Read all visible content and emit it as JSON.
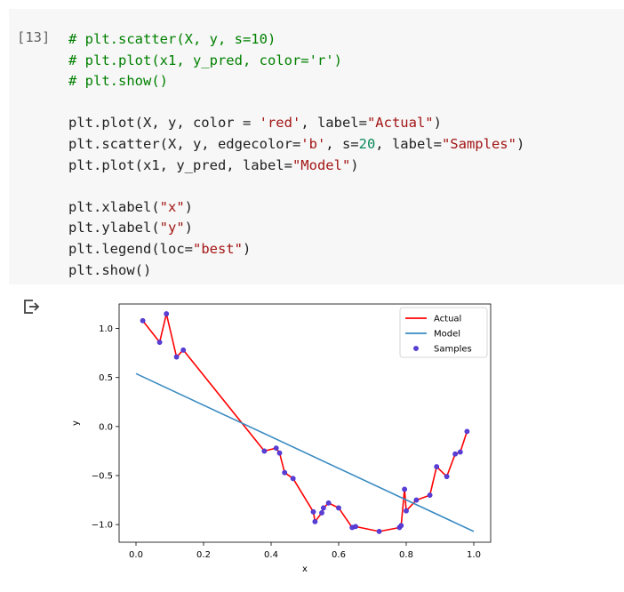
{
  "cell": {
    "execution_count": "[13]",
    "code_lines": [
      [
        {
          "t": "# plt.scatter(X, y, s=10)",
          "c": "cm"
        }
      ],
      [
        {
          "t": "# plt.plot(x1, y_pred, color='r')",
          "c": "cm"
        }
      ],
      [
        {
          "t": "# plt.show()",
          "c": "cm"
        }
      ],
      [],
      [
        {
          "t": "plt.plot(X, y, color = "
        },
        {
          "t": "'red'",
          "c": "st"
        },
        {
          "t": ", label="
        },
        {
          "t": "\"Actual\"",
          "c": "st"
        },
        {
          "t": ")"
        }
      ],
      [
        {
          "t": "plt.scatter(X, y, edgecolor="
        },
        {
          "t": "'b'",
          "c": "st"
        },
        {
          "t": ", s="
        },
        {
          "t": "20",
          "c": "nm"
        },
        {
          "t": ", label="
        },
        {
          "t": "\"Samples\"",
          "c": "st"
        },
        {
          "t": ")"
        }
      ],
      [
        {
          "t": "plt.plot(x1, y_pred, label="
        },
        {
          "t": "\"Model\"",
          "c": "st"
        },
        {
          "t": ")"
        }
      ],
      [],
      [
        {
          "t": "plt.xlabel("
        },
        {
          "t": "\"x\"",
          "c": "st"
        },
        {
          "t": ")"
        }
      ],
      [
        {
          "t": "plt.ylabel("
        },
        {
          "t": "\"y\"",
          "c": "st"
        },
        {
          "t": ")"
        }
      ],
      [
        {
          "t": "plt.legend(loc="
        },
        {
          "t": "\"best\"",
          "c": "st"
        },
        {
          "t": ")"
        }
      ],
      [
        {
          "t": "plt.show()"
        }
      ]
    ]
  },
  "output": {
    "icon": "output-arrow-icon"
  },
  "chart_data": {
    "type": "line",
    "title": "",
    "xlabel": "x",
    "ylabel": "y",
    "xlim": [
      -0.05,
      1.05
    ],
    "ylim": [
      -1.18,
      1.25
    ],
    "xticks": [
      0.0,
      0.2,
      0.4,
      0.6,
      0.8,
      1.0
    ],
    "xtick_labels": [
      "0.0",
      "0.2",
      "0.4",
      "0.6",
      "0.8",
      "1.0"
    ],
    "yticks": [
      -1.0,
      -0.5,
      0.0,
      0.5,
      1.0
    ],
    "ytick_labels": [
      "−1.0",
      "−0.5",
      "0.0",
      "0.5",
      "1.0"
    ],
    "legend_position": "top-right",
    "grid": false,
    "series": [
      {
        "name": "Actual",
        "kind": "line",
        "color": "#ff0000",
        "x": [
          0.02,
          0.07,
          0.09,
          0.12,
          0.14,
          0.38,
          0.415,
          0.425,
          0.44,
          0.465,
          0.525,
          0.53,
          0.55,
          0.555,
          0.57,
          0.6,
          0.64,
          0.65,
          0.72,
          0.78,
          0.785,
          0.795,
          0.8,
          0.83,
          0.87,
          0.89,
          0.92,
          0.945,
          0.96,
          0.98
        ],
        "y": [
          1.08,
          0.86,
          1.15,
          0.71,
          0.78,
          -0.25,
          -0.22,
          -0.27,
          -0.47,
          -0.53,
          -0.87,
          -0.97,
          -0.88,
          -0.83,
          -0.78,
          -0.83,
          -1.03,
          -1.02,
          -1.07,
          -1.03,
          -1.01,
          -0.64,
          -0.86,
          -0.75,
          -0.7,
          -0.41,
          -0.51,
          -0.28,
          -0.26,
          -0.05
        ]
      },
      {
        "name": "Model",
        "kind": "line",
        "color": "#3b8bc2",
        "x": [
          0.0,
          1.0
        ],
        "y": [
          0.54,
          -1.07
        ]
      },
      {
        "name": "Samples",
        "kind": "scatter",
        "color": "#5c3fd0",
        "x": [
          0.02,
          0.07,
          0.09,
          0.12,
          0.14,
          0.38,
          0.415,
          0.425,
          0.44,
          0.465,
          0.525,
          0.53,
          0.55,
          0.555,
          0.57,
          0.6,
          0.64,
          0.65,
          0.72,
          0.78,
          0.785,
          0.795,
          0.8,
          0.83,
          0.87,
          0.89,
          0.92,
          0.945,
          0.96,
          0.98
        ],
        "y": [
          1.08,
          0.86,
          1.15,
          0.71,
          0.78,
          -0.25,
          -0.22,
          -0.27,
          -0.47,
          -0.53,
          -0.87,
          -0.97,
          -0.88,
          -0.83,
          -0.78,
          -0.83,
          -1.03,
          -1.02,
          -1.07,
          -1.03,
          -1.01,
          -0.64,
          -0.86,
          -0.75,
          -0.7,
          -0.41,
          -0.51,
          -0.28,
          -0.26,
          -0.05
        ]
      }
    ]
  }
}
